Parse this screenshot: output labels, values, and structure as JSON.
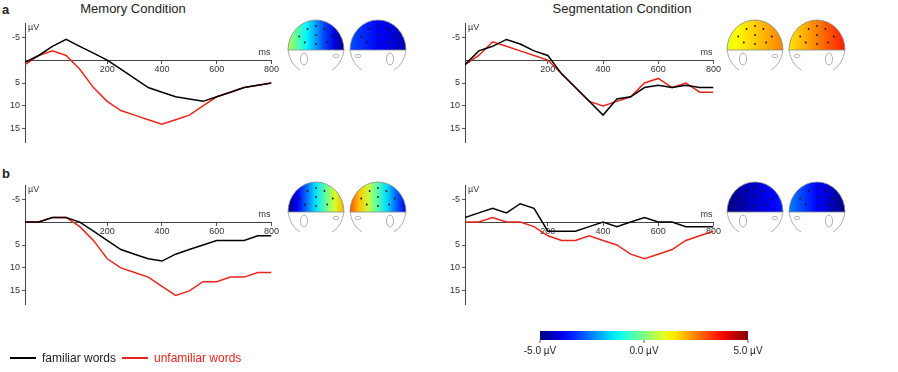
{
  "column_titles": [
    "Memory Condition",
    "Segmentation Condition"
  ],
  "row_labels": [
    "a",
    "b"
  ],
  "colorbar": {
    "range": [
      -5,
      5
    ],
    "ticks": [
      {
        "value": -5,
        "label": "-5.0 µV"
      },
      {
        "value": 0,
        "label": "0.0 µV"
      },
      {
        "value": 5,
        "label": "5.0 µV"
      }
    ]
  },
  "chart_data": [
    {
      "type": "line",
      "x_label": "ms",
      "y_label": "µV",
      "grid": false,
      "xlim": [
        -100,
        800
      ],
      "xticks": [
        200,
        400,
        600,
        800
      ],
      "ylim": [
        -8,
        18
      ],
      "yticks": [
        -5,
        5,
        10,
        15
      ],
      "x": [
        -100,
        -50,
        0,
        50,
        100,
        150,
        200,
        250,
        300,
        350,
        400,
        450,
        500,
        550,
        600,
        650,
        700,
        750,
        800
      ],
      "series": [
        {
          "name": "familiar words",
          "color": "#000000",
          "values": [
            0.5,
            -1,
            -3,
            -4.5,
            -3,
            -1.5,
            0,
            2,
            4,
            6,
            7,
            8,
            8.5,
            9,
            8,
            7,
            6,
            5.5,
            5
          ]
        },
        {
          "name": "unfamiliar words",
          "color": "#e8261c",
          "values": [
            1,
            -1,
            -2,
            -1,
            2,
            6,
            9,
            11,
            12,
            13,
            14,
            13,
            12,
            10,
            8,
            7,
            6,
            5.5,
            5
          ]
        }
      ],
      "topomaps": [
        {
          "left": 0.5,
          "right": -5
        },
        {
          "left": -3,
          "right": -4.5
        }
      ]
    },
    {
      "type": "line",
      "x_label": "ms",
      "y_label": "µV",
      "grid": false,
      "xlim": [
        -100,
        800
      ],
      "xticks": [
        200,
        400,
        600,
        800
      ],
      "ylim": [
        -8,
        18
      ],
      "yticks": [
        -5,
        5,
        10,
        15
      ],
      "x": [
        -100,
        -50,
        0,
        50,
        100,
        150,
        200,
        250,
        300,
        350,
        400,
        450,
        500,
        550,
        600,
        650,
        700,
        750,
        800
      ],
      "series": [
        {
          "name": "familiar words",
          "color": "#000000",
          "values": [
            1,
            -2,
            -3,
            -4.5,
            -3.5,
            -2,
            -1,
            3,
            6,
            9,
            12,
            8.5,
            8,
            6,
            5.5,
            6,
            5.5,
            6,
            6
          ]
        },
        {
          "name": "unfamiliar words",
          "color": "#e8261c",
          "values": [
            1,
            -1,
            -4,
            -3,
            -2,
            -1,
            0,
            3,
            6,
            9,
            10,
            9,
            8,
            5,
            4,
            6,
            5,
            7,
            7
          ]
        }
      ],
      "topomaps": [
        {
          "left": 1,
          "right": 2.5
        },
        {
          "left": 1.5,
          "right": 3.5
        }
      ]
    },
    {
      "type": "line",
      "x_label": "ms",
      "y_label": "µV",
      "grid": false,
      "xlim": [
        -100,
        800
      ],
      "xticks": [
        200,
        400,
        600,
        800
      ],
      "ylim": [
        -8,
        18
      ],
      "yticks": [
        -5,
        5,
        10,
        15
      ],
      "x": [
        -100,
        -50,
        0,
        50,
        100,
        150,
        200,
        250,
        300,
        350,
        400,
        450,
        500,
        550,
        600,
        650,
        700,
        750,
        800
      ],
      "series": [
        {
          "name": "familiar words",
          "color": "#000000",
          "values": [
            0,
            0,
            -1,
            -1,
            0,
            2,
            4,
            6,
            7,
            8,
            8.5,
            7,
            6,
            5,
            4,
            4,
            4,
            3,
            3
          ]
        },
        {
          "name": "unfamiliar words",
          "color": "#e8261c",
          "values": [
            0,
            0,
            -1,
            -1,
            1,
            4,
            8,
            10,
            11,
            12,
            14,
            16,
            15,
            13,
            13,
            12,
            12,
            11,
            11
          ]
        }
      ],
      "topomaps": [
        {
          "left": -5,
          "right": 2
        },
        {
          "left": 3,
          "right": -4
        }
      ]
    },
    {
      "type": "line",
      "x_label": "ms",
      "y_label": "µV",
      "grid": false,
      "xlim": [
        -100,
        800
      ],
      "xticks": [
        200,
        400,
        600,
        800
      ],
      "ylim": [
        -8,
        18
      ],
      "yticks": [
        -5,
        5,
        10,
        15
      ],
      "x": [
        -100,
        -50,
        0,
        50,
        100,
        150,
        200,
        250,
        300,
        350,
        400,
        450,
        500,
        550,
        600,
        650,
        700,
        750,
        800
      ],
      "series": [
        {
          "name": "familiar words",
          "color": "#000000",
          "values": [
            -1,
            -2,
            -3,
            -2,
            -4,
            -3,
            2,
            2,
            2,
            1,
            0,
            1,
            0,
            -1,
            0,
            0,
            1,
            1,
            1
          ]
        },
        {
          "name": "unfamiliar words",
          "color": "#e8261c",
          "values": [
            0,
            0,
            -1,
            0,
            0,
            1,
            3,
            4,
            4,
            3,
            4,
            5,
            7,
            8,
            7,
            6,
            4,
            3,
            2
          ]
        }
      ],
      "topomaps": [
        {
          "left": -5,
          "right": -3.5
        },
        {
          "left": -2.5,
          "right": -5
        }
      ]
    }
  ]
}
